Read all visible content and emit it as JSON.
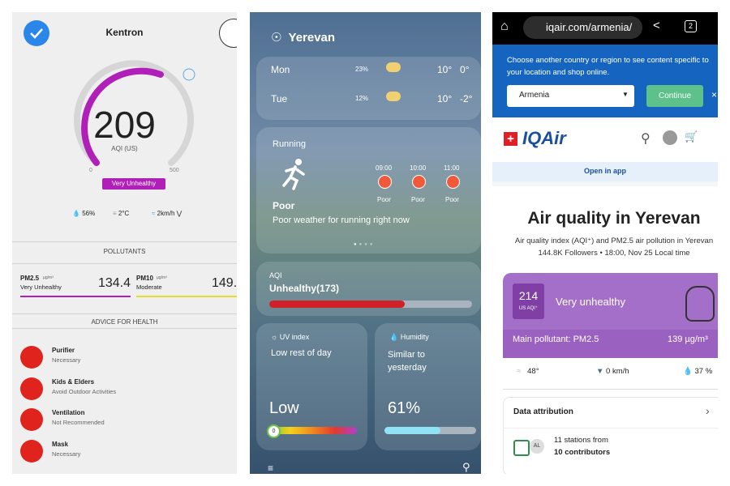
{
  "kentron_app": {
    "city": "Kentron",
    "aqi": "209",
    "aqi_unit": "AQI (US)",
    "scale_min": "0",
    "scale_max": "500",
    "status": "Very Unhealthy",
    "humidity": "56%",
    "temperature": "2°C",
    "wind": "2km/h",
    "pollutants_heading": "POLLUTANTS",
    "pollutants": [
      {
        "name": "PM2.5",
        "unit": "µg/m³",
        "level": "Very Unhealthy",
        "value": "134.4"
      },
      {
        "name": "PM10",
        "unit": "µg/m³",
        "level": "Moderate",
        "value": "149."
      }
    ],
    "advice_heading": "ADVICE FOR HEALTH",
    "advice": [
      {
        "title": "Purifier",
        "detail": "Necessary"
      },
      {
        "title": "Kids & Elders",
        "detail": "Avoid Outdoor Activities"
      },
      {
        "title": "Ventilation",
        "detail": "Not Recommended"
      },
      {
        "title": "Mask",
        "detail": "Necessary"
      }
    ]
  },
  "weather_app": {
    "city": "Yerevan",
    "forecast": [
      {
        "day": "Mon",
        "precip": "23%",
        "high": "10°",
        "low": "0°"
      },
      {
        "day": "Tue",
        "precip": "12%",
        "high": "10°",
        "low": "-2°"
      }
    ],
    "running": {
      "title": "Running",
      "times": [
        "09:00",
        "10:00",
        "11:00"
      ],
      "hour_rating": [
        "Poor",
        "Poor",
        "Poor"
      ],
      "rating": "Poor",
      "summary": "Poor weather for running right now"
    },
    "aqi": {
      "label": "AQI",
      "status": "Unhealthy(173)"
    },
    "uv": {
      "label": "UV index",
      "summary": "Low rest of day",
      "level": "Low",
      "marker": "0"
    },
    "humidity": {
      "label": "Humidity",
      "summary": "Similar to yesterday",
      "value": "61%"
    }
  },
  "iqair_browser": {
    "url": "iqair.com/armenia/",
    "tab_count": "2",
    "region_prompt": "Choose another country or region to see content specific to your location and shop online.",
    "region": "Armenia",
    "continue": "Continue",
    "brand": "IQAir",
    "open_in_app": "Open in app",
    "title": "Air quality in Yerevan",
    "subtitle": "Air quality index (AQI⁺) and PM2.5 air pollution in Yerevan",
    "meta": "144.8K Followers • 18:00, Nov 25 Local time",
    "aqi": "214",
    "aqi_unit": "US AQI⁺",
    "status": "Very unhealthy",
    "main_pollutant": "Main pollutant: PM2.5",
    "concentration": "139 µg/m³",
    "temperature": "48°",
    "wind": "0 km/h",
    "humidity": "37 %",
    "attribution": "Data attribution",
    "badge": "AL",
    "stations": "11 stations from",
    "contributors": "10 contributors"
  }
}
